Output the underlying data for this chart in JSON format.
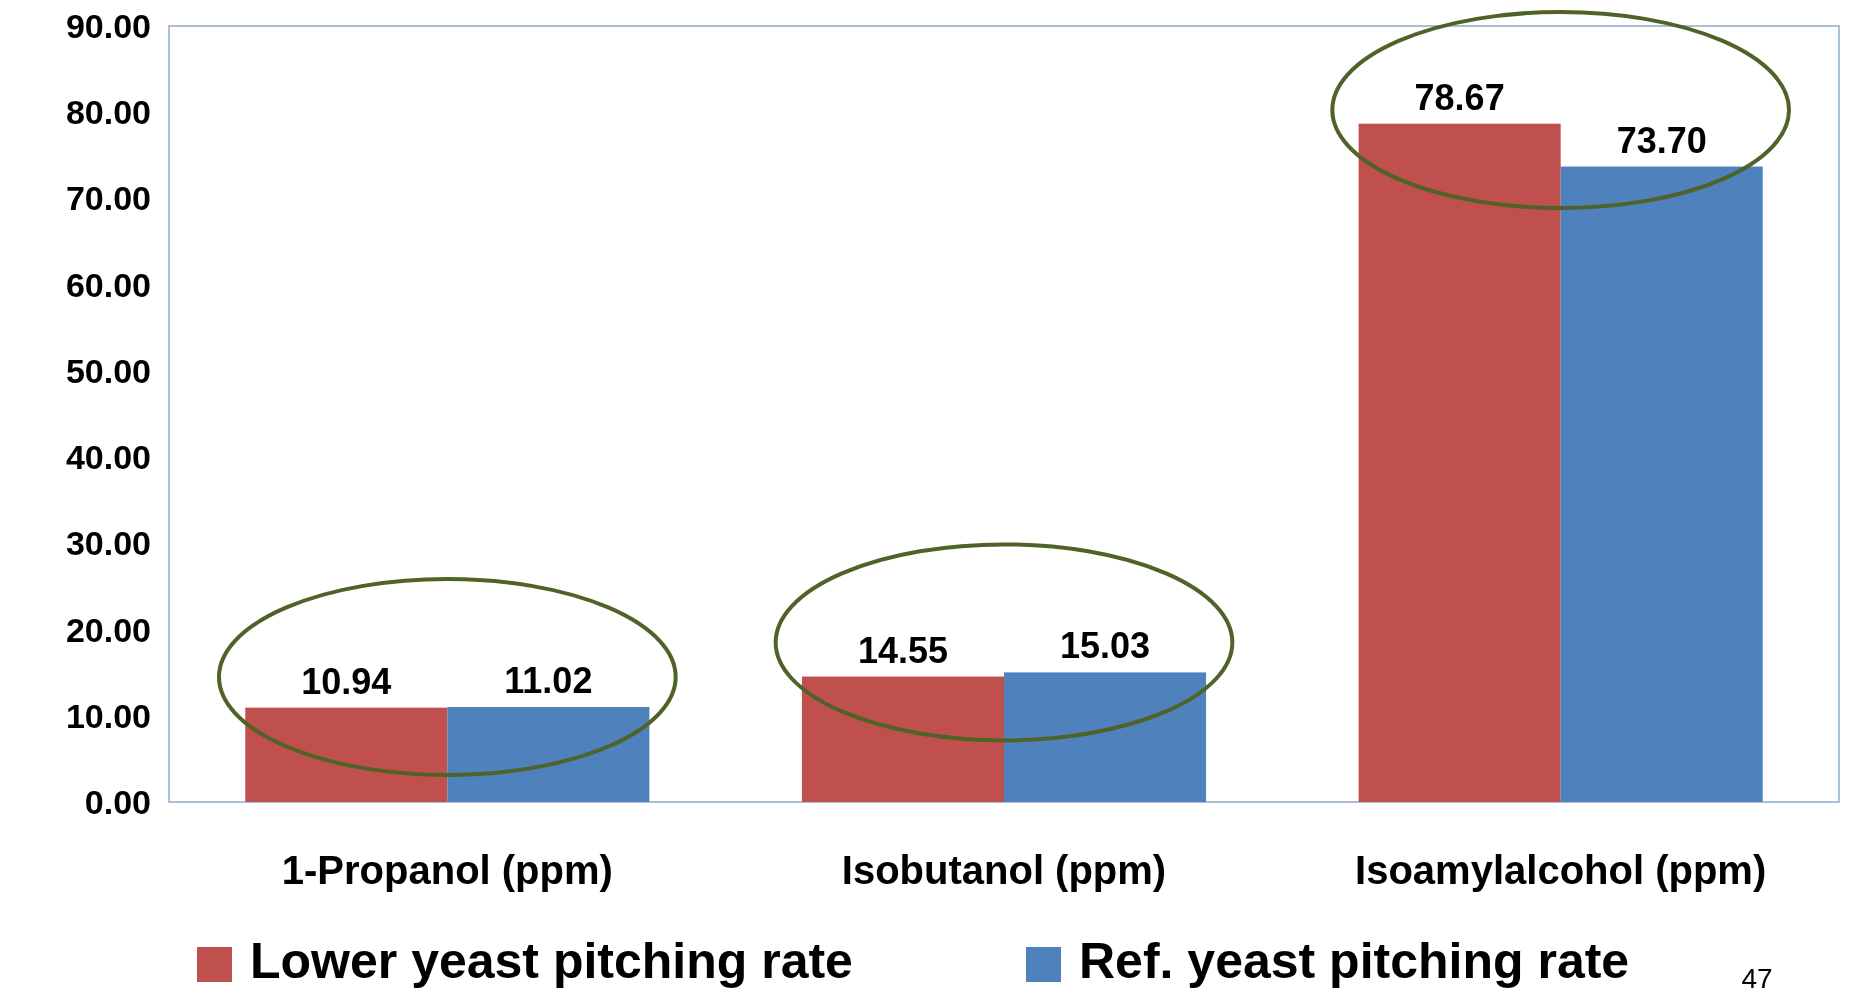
{
  "chart_data": {
    "type": "bar",
    "categories": [
      "1-Propanol (ppm)",
      "Isobutanol (ppm)",
      "Isoamylalcohol (ppm)"
    ],
    "series": [
      {
        "name": "Lower yeast pitching rate",
        "color": "#c0504d",
        "values": [
          10.94,
          14.55,
          78.67
        ]
      },
      {
        "name": "Ref. yeast pitching rate",
        "color": "#4f81bd",
        "values": [
          11.02,
          15.03,
          73.7
        ]
      }
    ],
    "ylim": [
      0,
      90
    ],
    "yticks": [
      {
        "value": 0,
        "label": "0.00"
      },
      {
        "value": 10,
        "label": "10.00"
      },
      {
        "value": 20,
        "label": "20.00"
      },
      {
        "value": 30,
        "label": "30.00"
      },
      {
        "value": 40,
        "label": "40.00"
      },
      {
        "value": 50,
        "label": "50.00"
      },
      {
        "value": 60,
        "label": "60.00"
      },
      {
        "value": 70,
        "label": "70.00"
      },
      {
        "value": 80,
        "label": "80.00"
      },
      {
        "value": 90,
        "label": "90.00"
      }
    ],
    "value_labels": [
      [
        "10.94",
        "14.55",
        "78.67"
      ],
      [
        "11.02",
        "15.03",
        "73.70"
      ]
    ],
    "grid": false,
    "legend": "bottom",
    "annotations": [
      "47"
    ]
  }
}
